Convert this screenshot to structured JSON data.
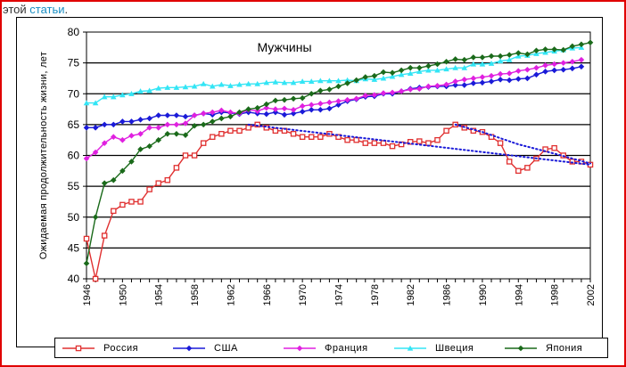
{
  "page": {
    "caption_text": "этой",
    "caption_link": "статьи",
    "caption_end": "."
  },
  "chart_data": {
    "type": "line",
    "title": "Мужчины",
    "xlabel": "",
    "ylabel": "Ожидаемая продолжительность жизни, лет",
    "xlim": [
      1946,
      2002
    ],
    "ylim": [
      40,
      80
    ],
    "grid": "horizontal",
    "legend_position": "bottom",
    "x_ticks": [
      1946,
      1950,
      1954,
      1958,
      1962,
      1966,
      1970,
      1974,
      1978,
      1982,
      1986,
      1990,
      1994,
      1998,
      2002
    ],
    "y_ticks": [
      40,
      45,
      50,
      55,
      60,
      65,
      70,
      75,
      80
    ],
    "series": [
      {
        "name": "Россия",
        "color": "#e03030",
        "marker": "square-open",
        "points": [
          [
            1946,
            46.5
          ],
          [
            1947,
            40
          ],
          [
            1948,
            47
          ],
          [
            1949,
            51
          ],
          [
            1950,
            52
          ],
          [
            1951,
            52.5
          ],
          [
            1952,
            52.5
          ],
          [
            1953,
            54.5
          ],
          [
            1954,
            55.5
          ],
          [
            1955,
            56
          ],
          [
            1956,
            58
          ],
          [
            1957,
            60
          ],
          [
            1958,
            60
          ],
          [
            1959,
            62
          ],
          [
            1960,
            63
          ],
          [
            1961,
            63.5
          ],
          [
            1962,
            64
          ],
          [
            1963,
            64
          ],
          [
            1964,
            64.5
          ],
          [
            1965,
            65
          ],
          [
            1966,
            64.5
          ],
          [
            1967,
            64
          ],
          [
            1968,
            64
          ],
          [
            1969,
            63.5
          ],
          [
            1970,
            63
          ],
          [
            1971,
            63
          ],
          [
            1972,
            63
          ],
          [
            1973,
            63.5
          ],
          [
            1974,
            63
          ],
          [
            1975,
            62.5
          ],
          [
            1976,
            62.5
          ],
          [
            1977,
            62
          ],
          [
            1978,
            62
          ],
          [
            1979,
            62
          ],
          [
            1980,
            61.5
          ],
          [
            1981,
            61.8
          ],
          [
            1982,
            62.2
          ],
          [
            1983,
            62.3
          ],
          [
            1984,
            62
          ],
          [
            1985,
            62.5
          ],
          [
            1986,
            64
          ],
          [
            1987,
            65
          ],
          [
            1988,
            64.5
          ],
          [
            1989,
            64
          ],
          [
            1990,
            63.8
          ],
          [
            1991,
            63
          ],
          [
            1992,
            62
          ],
          [
            1993,
            59
          ],
          [
            1994,
            57.5
          ],
          [
            1995,
            58
          ],
          [
            1996,
            59.5
          ],
          [
            1997,
            61
          ],
          [
            1998,
            61.2
          ],
          [
            1999,
            60
          ],
          [
            2000,
            59
          ],
          [
            2001,
            59
          ],
          [
            2002,
            58.5
          ]
        ]
      },
      {
        "name": "США",
        "color": "#1a1ad8",
        "marker": "diamond",
        "points": [
          [
            1946,
            64.5
          ],
          [
            1947,
            64.5
          ],
          [
            1948,
            65
          ],
          [
            1949,
            65
          ],
          [
            1950,
            65.5
          ],
          [
            1951,
            65.5
          ],
          [
            1952,
            65.8
          ],
          [
            1953,
            66
          ],
          [
            1954,
            66.5
          ],
          [
            1955,
            66.5
          ],
          [
            1956,
            66.5
          ],
          [
            1957,
            66.3
          ],
          [
            1958,
            66.5
          ],
          [
            1959,
            66.8
          ],
          [
            1960,
            66.6
          ],
          [
            1961,
            67
          ],
          [
            1962,
            66.9
          ],
          [
            1963,
            66.7
          ],
          [
            1964,
            67
          ],
          [
            1965,
            66.8
          ],
          [
            1966,
            66.7
          ],
          [
            1967,
            67
          ],
          [
            1968,
            66.6
          ],
          [
            1969,
            66.8
          ],
          [
            1970,
            67.1
          ],
          [
            1971,
            67.4
          ],
          [
            1972,
            67.4
          ],
          [
            1973,
            67.6
          ],
          [
            1974,
            68.2
          ],
          [
            1975,
            68.8
          ],
          [
            1976,
            69.1
          ],
          [
            1977,
            69.5
          ],
          [
            1978,
            69.6
          ],
          [
            1979,
            70
          ],
          [
            1980,
            70
          ],
          [
            1981,
            70.4
          ],
          [
            1982,
            70.8
          ],
          [
            1983,
            71
          ],
          [
            1984,
            71.1
          ],
          [
            1985,
            71.2
          ],
          [
            1986,
            71.2
          ],
          [
            1987,
            71.4
          ],
          [
            1988,
            71.4
          ],
          [
            1989,
            71.7
          ],
          [
            1990,
            71.8
          ],
          [
            1991,
            72
          ],
          [
            1992,
            72.3
          ],
          [
            1993,
            72.2
          ],
          [
            1994,
            72.4
          ],
          [
            1995,
            72.5
          ],
          [
            1996,
            73.1
          ],
          [
            1997,
            73.6
          ],
          [
            1998,
            73.8
          ],
          [
            1999,
            73.9
          ],
          [
            2000,
            74.1
          ],
          [
            2001,
            74.4
          ]
        ]
      },
      {
        "name": "Франция",
        "color": "#e020e0",
        "marker": "diamond",
        "points": [
          [
            1946,
            59.5
          ],
          [
            1947,
            60.5
          ],
          [
            1948,
            62
          ],
          [
            1949,
            63
          ],
          [
            1950,
            62.5
          ],
          [
            1951,
            63.2
          ],
          [
            1952,
            63.5
          ],
          [
            1953,
            64.5
          ],
          [
            1954,
            64.5
          ],
          [
            1955,
            65
          ],
          [
            1956,
            65
          ],
          [
            1957,
            65.2
          ],
          [
            1958,
            66.5
          ],
          [
            1959,
            66.8
          ],
          [
            1960,
            67
          ],
          [
            1961,
            67.3
          ],
          [
            1962,
            67
          ],
          [
            1963,
            66.8
          ],
          [
            1964,
            67.4
          ],
          [
            1965,
            67.2
          ],
          [
            1966,
            67.7
          ],
          [
            1967,
            67.5
          ],
          [
            1968,
            67.6
          ],
          [
            1969,
            67.4
          ],
          [
            1970,
            68
          ],
          [
            1971,
            68.2
          ],
          [
            1972,
            68.4
          ],
          [
            1973,
            68.6
          ],
          [
            1974,
            68.8
          ],
          [
            1975,
            69
          ],
          [
            1976,
            69.2
          ],
          [
            1977,
            69.7
          ],
          [
            1978,
            69.8
          ],
          [
            1979,
            70.1
          ],
          [
            1980,
            70.2
          ],
          [
            1981,
            70.4
          ],
          [
            1982,
            70.7
          ],
          [
            1983,
            70.8
          ],
          [
            1984,
            71.2
          ],
          [
            1985,
            71.3
          ],
          [
            1986,
            71.5
          ],
          [
            1987,
            72
          ],
          [
            1988,
            72.3
          ],
          [
            1989,
            72.5
          ],
          [
            1990,
            72.7
          ],
          [
            1991,
            72.9
          ],
          [
            1992,
            73.2
          ],
          [
            1993,
            73.3
          ],
          [
            1994,
            73.7
          ],
          [
            1995,
            73.9
          ],
          [
            1996,
            74.2
          ],
          [
            1997,
            74.6
          ],
          [
            1998,
            74.8
          ],
          [
            1999,
            75
          ],
          [
            2000,
            75.2
          ],
          [
            2001,
            75.5
          ]
        ]
      },
      {
        "name": "Швеция",
        "color": "#33e5f5",
        "marker": "triangle",
        "points": [
          [
            1946,
            68.5
          ],
          [
            1947,
            68.5
          ],
          [
            1948,
            69.5
          ],
          [
            1949,
            69.5
          ],
          [
            1950,
            69.8
          ],
          [
            1951,
            70
          ],
          [
            1952,
            70.4
          ],
          [
            1953,
            70.5
          ],
          [
            1954,
            70.9
          ],
          [
            1955,
            71
          ],
          [
            1956,
            71
          ],
          [
            1957,
            71.1
          ],
          [
            1958,
            71.2
          ],
          [
            1959,
            71.6
          ],
          [
            1960,
            71.2
          ],
          [
            1961,
            71.5
          ],
          [
            1962,
            71.3
          ],
          [
            1963,
            71.5
          ],
          [
            1964,
            71.6
          ],
          [
            1965,
            71.6
          ],
          [
            1966,
            71.8
          ],
          [
            1967,
            71.9
          ],
          [
            1968,
            71.8
          ],
          [
            1969,
            71.8
          ],
          [
            1970,
            72
          ],
          [
            1971,
            72
          ],
          [
            1972,
            72.1
          ],
          [
            1973,
            72.1
          ],
          [
            1974,
            72.1
          ],
          [
            1975,
            72.2
          ],
          [
            1976,
            72.1
          ],
          [
            1977,
            72.4
          ],
          [
            1978,
            72.3
          ],
          [
            1979,
            72.5
          ],
          [
            1980,
            72.8
          ],
          [
            1981,
            73.1
          ],
          [
            1982,
            73.3
          ],
          [
            1983,
            73.6
          ],
          [
            1984,
            73.8
          ],
          [
            1985,
            73.8
          ],
          [
            1986,
            74
          ],
          [
            1987,
            74.2
          ],
          [
            1988,
            74.2
          ],
          [
            1989,
            74.8
          ],
          [
            1990,
            74.8
          ],
          [
            1991,
            74.9
          ],
          [
            1992,
            75.3
          ],
          [
            1993,
            75.5
          ],
          [
            1994,
            76.1
          ],
          [
            1995,
            76.2
          ],
          [
            1996,
            76.5
          ],
          [
            1997,
            76.7
          ],
          [
            1998,
            76.9
          ],
          [
            1999,
            77.1
          ],
          [
            2000,
            77.4
          ],
          [
            2001,
            77.5
          ]
        ]
      },
      {
        "name": "Япония",
        "color": "#1a6a1a",
        "marker": "diamond",
        "points": [
          [
            1946,
            42.5
          ],
          [
            1947,
            50
          ],
          [
            1948,
            55.5
          ],
          [
            1949,
            56
          ],
          [
            1950,
            57.5
          ],
          [
            1951,
            59
          ],
          [
            1952,
            61
          ],
          [
            1953,
            61.5
          ],
          [
            1954,
            62.5
          ],
          [
            1955,
            63.5
          ],
          [
            1956,
            63.5
          ],
          [
            1957,
            63.3
          ],
          [
            1958,
            64.8
          ],
          [
            1959,
            65
          ],
          [
            1960,
            65.5
          ],
          [
            1961,
            66
          ],
          [
            1962,
            66.3
          ],
          [
            1963,
            67
          ],
          [
            1964,
            67.5
          ],
          [
            1965,
            67.7
          ],
          [
            1966,
            68.3
          ],
          [
            1967,
            68.9
          ],
          [
            1968,
            69
          ],
          [
            1969,
            69.2
          ],
          [
            1970,
            69.3
          ],
          [
            1971,
            70
          ],
          [
            1972,
            70.5
          ],
          [
            1973,
            70.7
          ],
          [
            1974,
            71.2
          ],
          [
            1975,
            71.7
          ],
          [
            1976,
            72.2
          ],
          [
            1977,
            72.7
          ],
          [
            1978,
            72.9
          ],
          [
            1979,
            73.5
          ],
          [
            1980,
            73.4
          ],
          [
            1981,
            73.8
          ],
          [
            1982,
            74.2
          ],
          [
            1983,
            74.2
          ],
          [
            1984,
            74.5
          ],
          [
            1985,
            74.8
          ],
          [
            1986,
            75.2
          ],
          [
            1987,
            75.6
          ],
          [
            1988,
            75.5
          ],
          [
            1989,
            75.9
          ],
          [
            1990,
            75.9
          ],
          [
            1991,
            76.1
          ],
          [
            1992,
            76.1
          ],
          [
            1993,
            76.3
          ],
          [
            1994,
            76.6
          ],
          [
            1995,
            76.4
          ],
          [
            1996,
            77
          ],
          [
            1997,
            77.2
          ],
          [
            1998,
            77.2
          ],
          [
            1999,
            77.1
          ],
          [
            2000,
            77.7
          ],
          [
            2001,
            78
          ],
          [
            2002,
            78.3
          ]
        ]
      }
    ],
    "trendlines": [
      {
        "name": "trend-1",
        "color": "#1a1ad8",
        "style": "dotted",
        "points": [
          [
            1964,
            65
          ],
          [
            2002,
            58.5
          ]
        ]
      },
      {
        "name": "trend-2",
        "color": "#1a1ad8",
        "style": "dotted",
        "points": [
          [
            1987,
            65
          ],
          [
            1990,
            63.8
          ],
          [
            1994,
            61.8
          ],
          [
            1998,
            60.3
          ],
          [
            2002,
            58.7
          ]
        ]
      }
    ]
  }
}
